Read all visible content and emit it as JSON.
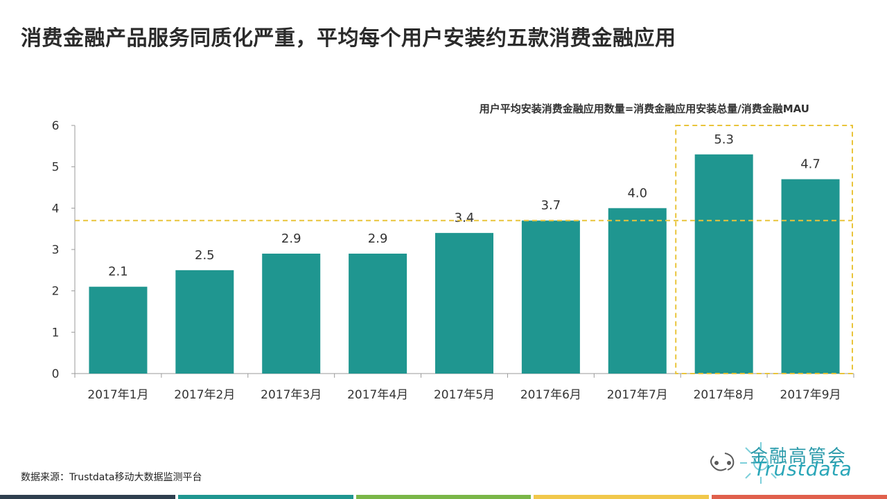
{
  "title": "消费金融产品服务同质化严重，平均每个用户安装约五款消费金融应用",
  "formula": "用户平均安装消费金融应用数量=消费金融应用安装总量/消费金融MAU",
  "source": "数据来源：Trustdata移动大数据监测平台",
  "logo": {
    "name": "金融高管会",
    "sub": "Trustdata"
  },
  "colors": {
    "bar": "#1f9690",
    "reference": "#e9c43a",
    "axis": "#9a9a9a",
    "bottom_bar": [
      "#2f3f4f",
      "#1f9690",
      "#7ab648",
      "#f1c84b",
      "#e0604c"
    ]
  },
  "chart_data": {
    "type": "bar",
    "categories": [
      "2017年1月",
      "2017年2月",
      "2017年3月",
      "2017年4月",
      "2017年5月",
      "2017年6月",
      "2017年7月",
      "2017年8月",
      "2017年9月"
    ],
    "values": [
      2.1,
      2.5,
      2.9,
      2.9,
      3.4,
      3.7,
      4.0,
      5.3,
      4.7
    ],
    "value_labels": [
      "2.1",
      "2.5",
      "2.9",
      "2.9",
      "3.4",
      "3.7",
      "4.0",
      "5.3",
      "4.7"
    ],
    "yticks": [
      "0",
      "1",
      "2",
      "3",
      "4",
      "5",
      "6"
    ],
    "ylim": [
      0,
      6
    ],
    "reference_line": 3.7,
    "highlighted_categories": [
      "2017年8月",
      "2017年9月"
    ],
    "grid": false,
    "legend": "none"
  }
}
